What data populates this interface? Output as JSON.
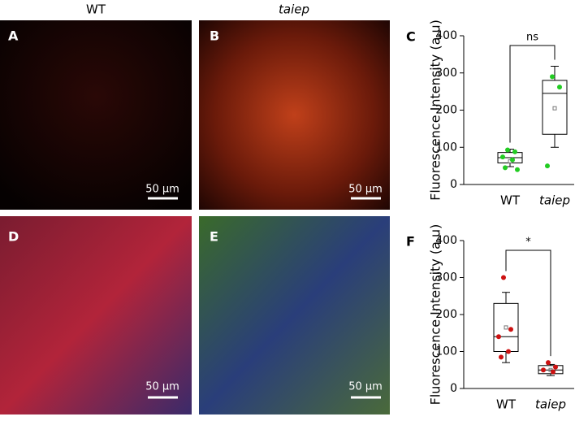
{
  "headers": {
    "wt": "WT",
    "taiep": "taiep"
  },
  "panels": {
    "a": "A",
    "b": "B",
    "d": "D",
    "e": "E"
  },
  "scale_bars": [
    "50 µm",
    "50 µm",
    "50 µm",
    "50 µm"
  ],
  "chart_data": [
    {
      "type": "box",
      "panel": "C",
      "y_label": "Fluorescence Intensity (a.u)",
      "categories": [
        "WT",
        "taiep"
      ],
      "ylim": [
        0,
        400
      ],
      "yticks": [
        0,
        100,
        200,
        300,
        400
      ],
      "annotation": "ns",
      "boxes": [
        {
          "whisker_low": 48,
          "q1": 58,
          "median": 72,
          "q3": 86,
          "whisker_high": 95,
          "mean": 62,
          "point_color": "#22cc22",
          "points": [
            93,
            88,
            74,
            66,
            45,
            40
          ]
        },
        {
          "whisker_low": 100,
          "q1": 135,
          "median": 245,
          "q3": 280,
          "whisker_high": 318,
          "mean": 205,
          "point_color": "#22cc22",
          "points": [
            290,
            262,
            50
          ]
        }
      ]
    },
    {
      "type": "box",
      "panel": "F",
      "y_label": "Fluorescence Intensity (a.u)",
      "categories": [
        "WT",
        "taiep"
      ],
      "ylim": [
        0,
        400
      ],
      "yticks": [
        0,
        100,
        200,
        300,
        400
      ],
      "annotation": "*",
      "boxes": [
        {
          "whisker_low": 70,
          "q1": 100,
          "median": 140,
          "q3": 230,
          "whisker_high": 260,
          "mean": 165,
          "point_color": "#cc1111",
          "points": [
            300,
            160,
            140,
            100,
            85
          ]
        },
        {
          "whisker_low": 35,
          "q1": 40,
          "median": 50,
          "q3": 62,
          "whisker_high": 65,
          "mean": 50,
          "point_color": "#cc1111",
          "points": [
            70,
            58,
            50,
            45
          ]
        }
      ]
    }
  ]
}
